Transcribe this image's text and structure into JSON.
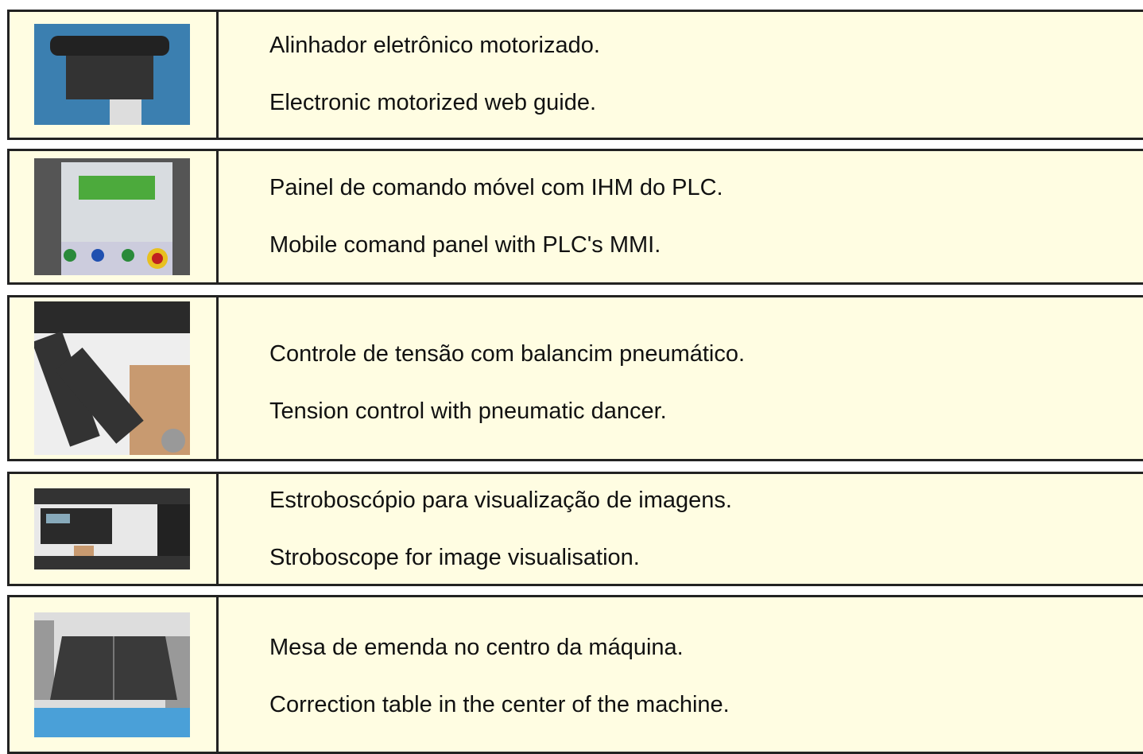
{
  "rows": [
    {
      "pt": "Alinhador eletrônico motorizado.",
      "en": "Electronic motorized web guide."
    },
    {
      "pt": "Painel de comando móvel com IHM do PLC.",
      "en": "Mobile comand panel with PLC's MMI."
    },
    {
      "pt": "Controle de tensão com balancim pneumático.",
      "en": "Tension control with pneumatic dancer."
    },
    {
      "pt": "Estroboscópio para visualização de imagens.",
      "en": "Stroboscope for image visualisation."
    },
    {
      "pt": "Mesa de emenda no centro da máquina.",
      "en": "Correction table in the center of the machine."
    }
  ]
}
